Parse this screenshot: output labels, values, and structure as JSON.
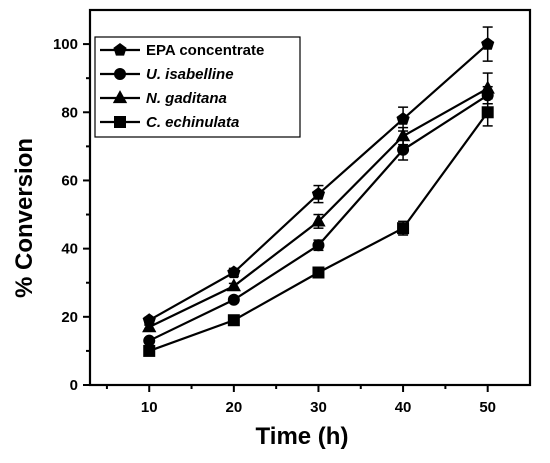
{
  "chart_data": {
    "type": "line",
    "xlabel": "Time (h)",
    "ylabel": "% Conversion",
    "x": [
      10,
      20,
      30,
      40,
      50
    ],
    "xlim": [
      3,
      55
    ],
    "ylim": [
      0,
      110
    ],
    "xticks": [
      "10",
      "20",
      "30",
      "40",
      "50"
    ],
    "yticks": [
      "0",
      "20",
      "40",
      "60",
      "80",
      "100"
    ],
    "legend_position": "top-left",
    "grid": false,
    "series": [
      {
        "name": "EPA concentrate",
        "marker": "pentagon",
        "values": [
          19,
          33,
          56,
          78,
          100
        ],
        "errors": [
          0.8,
          1.2,
          2.5,
          3.5,
          5.0
        ]
      },
      {
        "name": "U. isabelline",
        "marker": "circle",
        "italic": true,
        "values": [
          13,
          25,
          41,
          69,
          85
        ],
        "errors": [
          0.6,
          0.8,
          1.5,
          3.0,
          2.5
        ]
      },
      {
        "name": "N. gaditana",
        "marker": "triangle",
        "italic": true,
        "values": [
          17,
          29,
          48,
          73,
          87
        ],
        "errors": [
          0.6,
          0.8,
          2.0,
          2.5,
          4.5
        ]
      },
      {
        "name": "C. echinulata",
        "marker": "square",
        "italic": true,
        "values": [
          10,
          19,
          33,
          46,
          80
        ],
        "errors": [
          0.5,
          0.6,
          0.8,
          2.0,
          4.0
        ]
      }
    ]
  }
}
